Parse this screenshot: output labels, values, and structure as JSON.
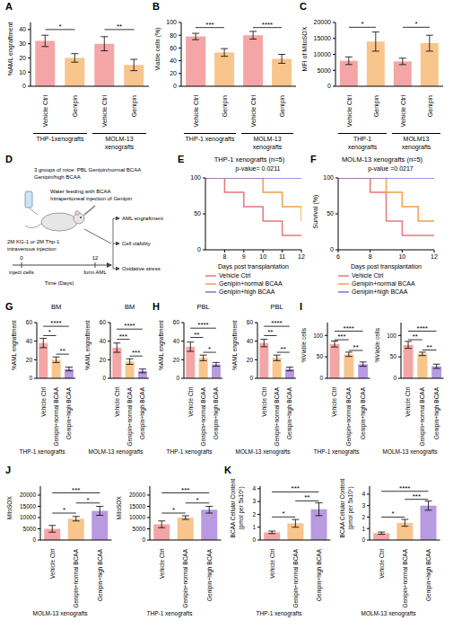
{
  "chart_data": [
    {
      "type": "bar",
      "panel": "A",
      "y_label": "%AML engraftment",
      "categories": [
        "Vehicle Ctrl",
        "Genipin",
        "Vehicle Ctrl",
        "Genipin"
      ],
      "values": [
        32,
        20,
        30,
        15
      ],
      "errors": [
        4,
        3,
        5,
        4
      ],
      "colors": [
        "#F4A6A6",
        "#F8C58C",
        "#F4A6A6",
        "#F8C58C"
      ],
      "ylim": [
        0,
        45
      ],
      "yticks": [
        0,
        10,
        20,
        30,
        40
      ],
      "groups": [
        {
          "label": "THP-1xenografts",
          "from": 0,
          "to": 1
        },
        {
          "label": "MOLM-13 xenografts",
          "from": 2,
          "to": 3
        }
      ],
      "annotations": [
        {
          "from": 0,
          "to": 1,
          "y": 40,
          "label": "*"
        },
        {
          "from": 2,
          "to": 3,
          "y": 40,
          "label": "**"
        }
      ]
    },
    {
      "type": "bar",
      "panel": "B",
      "y_label": "Viable cells (%)",
      "categories": [
        "Vehicle Ctrl",
        "Genipin",
        "Vehicle Ctrl",
        "Genipin"
      ],
      "values": [
        78,
        53,
        80,
        43
      ],
      "errors": [
        5,
        6,
        6,
        7
      ],
      "colors": [
        "#F4A6A6",
        "#F8C58C",
        "#F4A6A6",
        "#F8C58C"
      ],
      "ylim": [
        0,
        100
      ],
      "yticks": [
        0,
        20,
        40,
        60,
        80,
        100
      ],
      "groups": [
        {
          "label": "THP-1 xenografts",
          "from": 0,
          "to": 1
        },
        {
          "label": "MOLM-13 xenografts",
          "from": 2,
          "to": 3
        }
      ],
      "annotations": [
        {
          "from": 0,
          "to": 1,
          "y": 92,
          "label": "***"
        },
        {
          "from": 2,
          "to": 3,
          "y": 92,
          "label": "****"
        }
      ]
    },
    {
      "type": "bar",
      "panel": "C",
      "y_label": "MFI of MitoSOX",
      "categories": [
        "Vehicle Ctrl",
        "Genipin",
        "Vehicle Ctrl",
        "Genipin"
      ],
      "values": [
        8000,
        14000,
        7800,
        13500
      ],
      "errors": [
        1200,
        3000,
        1000,
        2500
      ],
      "colors": [
        "#F4A6A6",
        "#F8C58C",
        "#F4A6A6",
        "#F8C58C"
      ],
      "ylim": [
        0,
        20000
      ],
      "yticks": [
        0,
        5000,
        10000,
        15000,
        20000
      ],
      "groups": [
        {
          "label": "THP-1 xenografts",
          "from": 0,
          "to": 1
        },
        {
          "label": "MOLM13 xenografts",
          "from": 2,
          "to": 3
        }
      ],
      "annotations": [
        {
          "from": 0,
          "to": 1,
          "y": 18500,
          "label": "*"
        },
        {
          "from": 2,
          "to": 3,
          "y": 18500,
          "label": "*"
        }
      ]
    },
    {
      "type": "line",
      "panel": "E",
      "title": "THP-1 xenografts (n=5)",
      "annotation": "p-value= 0.0211",
      "x_label": "Days post transplantation",
      "x": [
        7,
        8,
        9,
        10,
        11,
        12
      ],
      "series": [
        {
          "name": "Vehicle Ctrl",
          "color": "#E8777A",
          "values": [
            100,
            80,
            60,
            40,
            20,
            20
          ]
        },
        {
          "name": "Genipin+normal BCAA",
          "color": "#F0A04B",
          "values": [
            100,
            100,
            100,
            80,
            60,
            40
          ]
        },
        {
          "name": "Genipin+high BCAA",
          "color": "#8E6CCF",
          "values": [
            100,
            100,
            100,
            100,
            100,
            100
          ]
        }
      ],
      "xlim": [
        7,
        12
      ],
      "xticks": [
        8,
        9,
        10,
        11,
        12
      ],
      "ylim": [
        0,
        100
      ],
      "yticks": [
        0,
        50,
        100
      ],
      "line_style": "step",
      "legend": "bottom"
    },
    {
      "type": "line",
      "panel": "F",
      "title": "MOLM-13 xenografts (n=5)",
      "annotation": "p-value =0.0217",
      "x_label": "Days post transplantation",
      "y_label": "Survival (%)",
      "x": [
        6,
        7,
        8,
        9,
        10,
        11,
        12
      ],
      "series": [
        {
          "name": "Vehicle Ctrl",
          "color": "#E8777A",
          "values": [
            100,
            100,
            80,
            40,
            20,
            20,
            20
          ]
        },
        {
          "name": "Genipin+normal BCAA",
          "color": "#F0A04B",
          "values": [
            100,
            100,
            100,
            80,
            60,
            40,
            40
          ]
        },
        {
          "name": "Genipin+high BCAA",
          "color": "#8E6CCF",
          "values": [
            100,
            100,
            100,
            100,
            100,
            100,
            100
          ]
        }
      ],
      "xlim": [
        6,
        12
      ],
      "xticks": [
        6,
        8,
        10,
        12
      ],
      "ylim": [
        0,
        100
      ],
      "yticks": [
        0,
        50,
        100
      ],
      "line_style": "step",
      "legend": "bottom"
    },
    {
      "type": "bar",
      "panel": "G",
      "title": "BM",
      "y_label": "%AML engraftment",
      "categories": [
        "Vehicle Ctrl",
        "Genipin+normal BCAA",
        "Genipin+high BCAA"
      ],
      "values": [
        38,
        20,
        10
      ],
      "errors": [
        5,
        3,
        2
      ],
      "colors": [
        "#F4A6A6",
        "#F8C58C",
        "#B89AE0"
      ],
      "ylim": [
        0,
        60
      ],
      "yticks": [
        0,
        20,
        40,
        60
      ],
      "groups": [
        {
          "label": "THP-1 xenografts",
          "from": 0,
          "to": 2
        }
      ],
      "annotations": [
        {
          "from": 1,
          "to": 2,
          "y": 26,
          "label": "**"
        },
        {
          "from": 0,
          "to": 1,
          "y": 46,
          "label": "*"
        },
        {
          "from": 0,
          "to": 2,
          "y": 56,
          "label": "****"
        }
      ]
    },
    {
      "type": "bar",
      "title": "BM",
      "y_label": "%AML engraftment",
      "categories": [
        "Vehicle Ctrl",
        "Genipin+normal BCAA",
        "Genipin+high BCAA"
      ],
      "values": [
        33,
        18,
        8
      ],
      "errors": [
        5,
        3,
        2
      ],
      "colors": [
        "#F4A6A6",
        "#F8C58C",
        "#B89AE0"
      ],
      "ylim": [
        0,
        60
      ],
      "yticks": [
        0,
        20,
        40,
        60
      ],
      "groups": [
        {
          "label": "MOLM-13 xenografts",
          "from": 0,
          "to": 2
        }
      ],
      "annotations": [
        {
          "from": 1,
          "to": 2,
          "y": 24,
          "label": "***"
        },
        {
          "from": 0,
          "to": 1,
          "y": 42,
          "label": "***"
        },
        {
          "from": 0,
          "to": 2,
          "y": 53,
          "label": "****"
        }
      ]
    },
    {
      "type": "bar",
      "panel": "H",
      "title": "PBL",
      "y_label": "%AML engraftment",
      "categories": [
        "Vehicle Ctrl",
        "Genipin+normal BCAA",
        "Genipin+high BCAA"
      ],
      "values": [
        34,
        22,
        15
      ],
      "errors": [
        5,
        3,
        2
      ],
      "colors": [
        "#F4A6A6",
        "#F8C58C",
        "#B89AE0"
      ],
      "ylim": [
        0,
        60
      ],
      "yticks": [
        0,
        20,
        40,
        60
      ],
      "groups": [
        {
          "label": "THP-1 xenografts",
          "from": 0,
          "to": 2
        }
      ],
      "annotations": [
        {
          "from": 1,
          "to": 2,
          "y": 28,
          "label": "*"
        },
        {
          "from": 0,
          "to": 1,
          "y": 44,
          "label": "**"
        },
        {
          "from": 0,
          "to": 2,
          "y": 54,
          "label": "****"
        }
      ]
    },
    {
      "type": "bar",
      "title": "PBL",
      "y_label": "%AML engraftment",
      "categories": [
        "Vehicle Ctrl",
        "Genipin+normal BCAA",
        "Genipin+high BCAA"
      ],
      "values": [
        38,
        22,
        10
      ],
      "errors": [
        4,
        3,
        2
      ],
      "colors": [
        "#F4A6A6",
        "#F8C58C",
        "#B89AE0"
      ],
      "ylim": [
        0,
        60
      ],
      "yticks": [
        0,
        20,
        40,
        60
      ],
      "groups": [
        {
          "label": "MOLM-13 xenografts",
          "from": 0,
          "to": 2
        }
      ],
      "annotations": [
        {
          "from": 1,
          "to": 2,
          "y": 28,
          "label": "**"
        },
        {
          "from": 0,
          "to": 1,
          "y": 46,
          "label": "**"
        },
        {
          "from": 0,
          "to": 2,
          "y": 56,
          "label": "****"
        }
      ]
    },
    {
      "type": "bar",
      "panel": "I",
      "y_label": "%Viable cells",
      "categories": [
        "Vehicle Ctrl",
        "Genipin+normal BCAA",
        "Genipin+high BCAA"
      ],
      "values": [
        80,
        56,
        33
      ],
      "errors": [
        7,
        5,
        5
      ],
      "colors": [
        "#F4A6A6",
        "#F8C58C",
        "#B89AE0"
      ],
      "ylim": [
        0,
        130
      ],
      "yticks": [
        0,
        50,
        100
      ],
      "groups": [
        {
          "label": "THP-1 xenografts",
          "from": 0,
          "to": 2
        }
      ],
      "annotations": [
        {
          "from": 1,
          "to": 2,
          "y": 65,
          "label": "**"
        },
        {
          "from": 0,
          "to": 1,
          "y": 90,
          "label": "***"
        },
        {
          "from": 0,
          "to": 2,
          "y": 110,
          "label": "****"
        }
      ]
    },
    {
      "type": "bar",
      "y_label": "%Viable cells",
      "categories": [
        "Vehicle Ctrl",
        "Genipin+normal BCAA",
        "Genipin+high BCAA"
      ],
      "values": [
        78,
        57,
        28
      ],
      "errors": [
        8,
        4,
        5
      ],
      "colors": [
        "#F4A6A6",
        "#F8C58C",
        "#B89AE0"
      ],
      "ylim": [
        0,
        130
      ],
      "yticks": [
        0,
        50,
        100
      ],
      "groups": [
        {
          "label": "MOLM-13 xenografts",
          "from": 0,
          "to": 2
        }
      ],
      "annotations": [
        {
          "from": 1,
          "to": 2,
          "y": 66,
          "label": "**"
        },
        {
          "from": 0,
          "to": 1,
          "y": 90,
          "label": "**"
        },
        {
          "from": 0,
          "to": 2,
          "y": 110,
          "label": "****"
        }
      ]
    },
    {
      "type": "bar",
      "panel": "J",
      "y_label": "MitoSOX",
      "categories": [
        "Vehicle Ctrl",
        "Genipin+normal BCAA",
        "Genipin+high BCAA"
      ],
      "values": [
        5000,
        9500,
        13000
      ],
      "errors": [
        1500,
        1000,
        2000
      ],
      "colors": [
        "#F4A6A6",
        "#F8C58C",
        "#B89AE0"
      ],
      "ylim": [
        0,
        24000
      ],
      "yticks": [
        0,
        5000,
        10000,
        15000,
        20000
      ],
      "groups": [
        {
          "label": "MOLM-13 xenografts",
          "from": 0,
          "to": 2
        }
      ],
      "annotations": [
        {
          "from": 0,
          "to": 1,
          "y": 12000,
          "label": "*"
        },
        {
          "from": 1,
          "to": 2,
          "y": 16500,
          "label": "*"
        },
        {
          "from": 0,
          "to": 2,
          "y": 21000,
          "label": "***"
        }
      ]
    },
    {
      "type": "bar",
      "y_label": "MitoSOX",
      "categories": [
        "Vehicle Ctrl",
        "Genipin+normal BCAA",
        "Genipin+high BCAA"
      ],
      "values": [
        7000,
        10000,
        13500
      ],
      "errors": [
        1500,
        800,
        1500
      ],
      "colors": [
        "#F4A6A6",
        "#F8C58C",
        "#B89AE0"
      ],
      "ylim": [
        0,
        24000
      ],
      "yticks": [
        0,
        5000,
        10000,
        15000,
        20000
      ],
      "groups": [
        {
          "label": "THP-1 xenografts",
          "from": 0,
          "to": 2
        }
      ],
      "annotations": [
        {
          "from": 0,
          "to": 1,
          "y": 12000,
          "label": "*"
        },
        {
          "from": 1,
          "to": 2,
          "y": 16500,
          "label": "*"
        },
        {
          "from": 0,
          "to": 2,
          "y": 21000,
          "label": "***"
        }
      ]
    },
    {
      "type": "bar",
      "panel": "K",
      "y_label": "BCAA Cellular Content (pmol per 5x10⁵)",
      "categories": [
        "Vehicle Ctrl",
        "Genipin+normal BCAA",
        "Genipin+high BCAA"
      ],
      "values": [
        0.6,
        1.3,
        2.4
      ],
      "errors": [
        0.1,
        0.3,
        0.5
      ],
      "colors": [
        "#F4A6A6",
        "#F8C58C",
        "#B89AE0"
      ],
      "ylim": [
        0,
        4.2
      ],
      "yticks": [
        0,
        1,
        2,
        3,
        4
      ],
      "groups": [
        {
          "label": "THP-1 xenografts",
          "from": 0,
          "to": 2
        }
      ],
      "annotations": [
        {
          "from": 0,
          "to": 1,
          "y": 1.8,
          "label": "*"
        },
        {
          "from": 1,
          "to": 2,
          "y": 3.05,
          "label": "**"
        },
        {
          "from": 0,
          "to": 2,
          "y": 3.75,
          "label": "***"
        }
      ]
    },
    {
      "type": "bar",
      "y_label": "BCAA Cellular Content (pmol per 5x10⁵)",
      "categories": [
        "Vehicle Ctrl",
        "Genipin+normal BCAA",
        "Genipin+high BCAA"
      ],
      "values": [
        0.6,
        1.5,
        3.0
      ],
      "errors": [
        0.1,
        0.3,
        0.4
      ],
      "colors": [
        "#F4A6A6",
        "#F8C58C",
        "#B89AE0"
      ],
      "ylim": [
        0,
        4.7
      ],
      "yticks": [
        0,
        1,
        2,
        3,
        4
      ],
      "groups": [
        {
          "label": "MOLM-13 xenografts",
          "from": 0,
          "to": 2
        }
      ],
      "annotations": [
        {
          "from": 0,
          "to": 1,
          "y": 2.0,
          "label": "*"
        },
        {
          "from": 1,
          "to": 2,
          "y": 3.55,
          "label": "***"
        },
        {
          "from": 0,
          "to": 2,
          "y": 4.25,
          "label": "****"
        }
      ]
    }
  ],
  "diagram": {
    "panel": "D",
    "groups_lines": [
      "3 groups of mice: PBL Genipin/normal BCAA",
      "Genipin/high BCAA"
    ],
    "treatment_lines": [
      "Water feeding with BCAA",
      "Intraperitoneal injection of Genipin"
    ],
    "injection_lines": [
      "2M KG-1 or 2M Thp-1",
      "intravenous injection"
    ],
    "timeline": {
      "start": 0,
      "start_label": "inject cells",
      "end": 12,
      "end_label": "form AML",
      "label": "Time (Days)"
    },
    "outcomes": [
      "AML engraftment",
      "Cell viability",
      "Oxidative stress"
    ]
  }
}
